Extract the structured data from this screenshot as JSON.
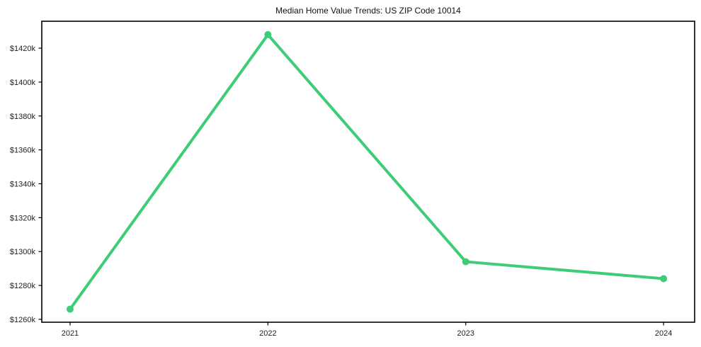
{
  "chart_data": {
    "type": "line",
    "title": "Median Home Value Trends: US ZIP Code 10014",
    "x": [
      2021,
      2022,
      2023,
      2024
    ],
    "x_labels": [
      "2021",
      "2022",
      "2023",
      "2024"
    ],
    "values": [
      1266,
      1428,
      1294,
      1284
    ],
    "ytick_values": [
      1260,
      1280,
      1300,
      1320,
      1340,
      1360,
      1380,
      1400,
      1420
    ],
    "ytick_labels": [
      "$1260k",
      "$1280k",
      "$1300k",
      "$1320k",
      "$1340k",
      "$1360k",
      "$1380k",
      "$1400k",
      "$1420k"
    ],
    "xlim": [
      2020.857,
      2024.157
    ],
    "ylim": [
      1258.3,
      1435.9
    ],
    "grid": false,
    "legend": false,
    "line_color": "#3ecc76",
    "marker_color": "#3ecc76",
    "axis_color": "#000000",
    "tick_label_color": "#222222"
  }
}
